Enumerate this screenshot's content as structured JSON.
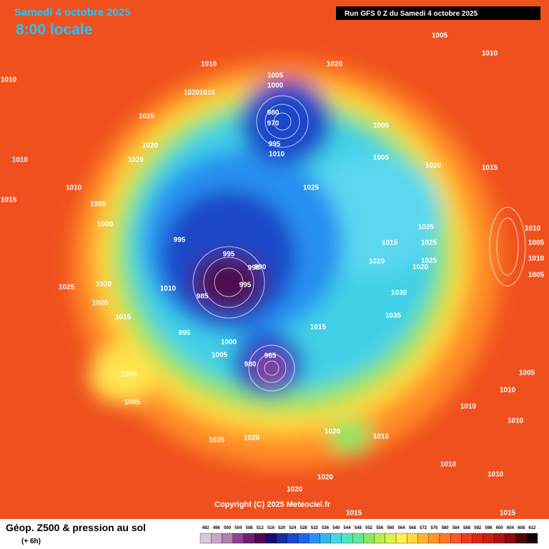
{
  "header": {
    "date": "Samedi 4 octobre 2025",
    "time": "8:00 locale",
    "run": "Run GFS 0 Z du Samedi 4 octobre 2025"
  },
  "isobar_labels": [
    "1005",
    "1010",
    "1020",
    "1010",
    "1005",
    "1000",
    "1020",
    "1015",
    "1025",
    "980",
    "970",
    "1005",
    "995",
    "1010",
    "1020",
    "1020",
    "1010",
    "1005",
    "1020",
    "1010",
    "1025",
    "1015",
    "1005",
    "1000",
    "1025",
    "995",
    "1015",
    "1025",
    "995",
    "990",
    "990",
    "1020",
    "1025",
    "1020",
    "1025",
    "1020",
    "1010",
    "985",
    "995",
    "1030",
    "1020",
    "1015",
    "1035",
    "995",
    "1000",
    "1005",
    "965",
    "980",
    "1015",
    "1000",
    "1005",
    "1025",
    "1020",
    "1020",
    "1015",
    "1020",
    "1020",
    "1010",
    "1010",
    "1010",
    "1010",
    "1005",
    "1010",
    "1010",
    "1005",
    "1010",
    "1005",
    "1015",
    "1015",
    "1015",
    "1010"
  ],
  "footer": {
    "product": "Géop. Z500 & pression au sol",
    "step": "(+ 6h)",
    "copyright": "Copyright (C) 2025 Meteociel.fr"
  },
  "legend": {
    "values": [
      492,
      496,
      500,
      504,
      508,
      512,
      516,
      520,
      524,
      528,
      532,
      536,
      540,
      544,
      548,
      552,
      556,
      560,
      564,
      568,
      572,
      576,
      580,
      584,
      588,
      592,
      596,
      600,
      604,
      608,
      612
    ],
    "colors": [
      "#d8c8d8",
      "#c8a8c8",
      "#b080b0",
      "#904090",
      "#702070",
      "#500a50",
      "#1a0a6e",
      "#1a2aa0",
      "#1e46c8",
      "#1e64e6",
      "#2890f0",
      "#34b4f0",
      "#40d8e6",
      "#50e6c0",
      "#64e696",
      "#8ce664",
      "#b4ee50",
      "#dcf050",
      "#fff050",
      "#ffd840",
      "#ffb432",
      "#ff9628",
      "#ff7828",
      "#f55a28",
      "#eb3c1e",
      "#dc2814",
      "#c81e14",
      "#aa1414",
      "#8c0a0a",
      "#500505",
      "#140000"
    ]
  }
}
